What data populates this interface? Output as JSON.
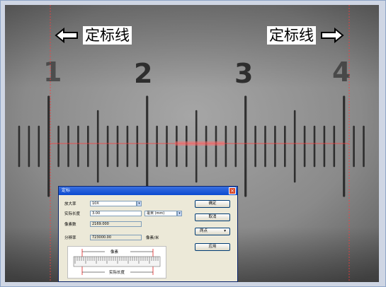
{
  "overlay": {
    "left_label": "定标线",
    "right_label": "定标线",
    "ruler_numbers": [
      "1",
      "2",
      "3",
      "4"
    ]
  },
  "dialog": {
    "title": "定标",
    "fields": {
      "magnification_label": "放大率",
      "magnification_value": "10X",
      "actual_length_label": "实际长度",
      "actual_length_value": "3.00",
      "unit_value": "毫米 (mm)",
      "pixels_label": "像素数",
      "pixels_value": "2169.000",
      "resolution_label": "分辨率",
      "resolution_value": "723000.00",
      "resolution_unit": "像素/米"
    },
    "buttons": {
      "ok": "确定",
      "cancel": "取消",
      "two_points": "两点",
      "apply": "应用"
    },
    "diagram": {
      "pixel_label": "像素",
      "actual_length_label": "实际长度"
    }
  },
  "colors": {
    "calibration_line": "#ff3b3b",
    "dialog_title_bar": "#0b4ad0",
    "close_button": "#d84a2c"
  }
}
